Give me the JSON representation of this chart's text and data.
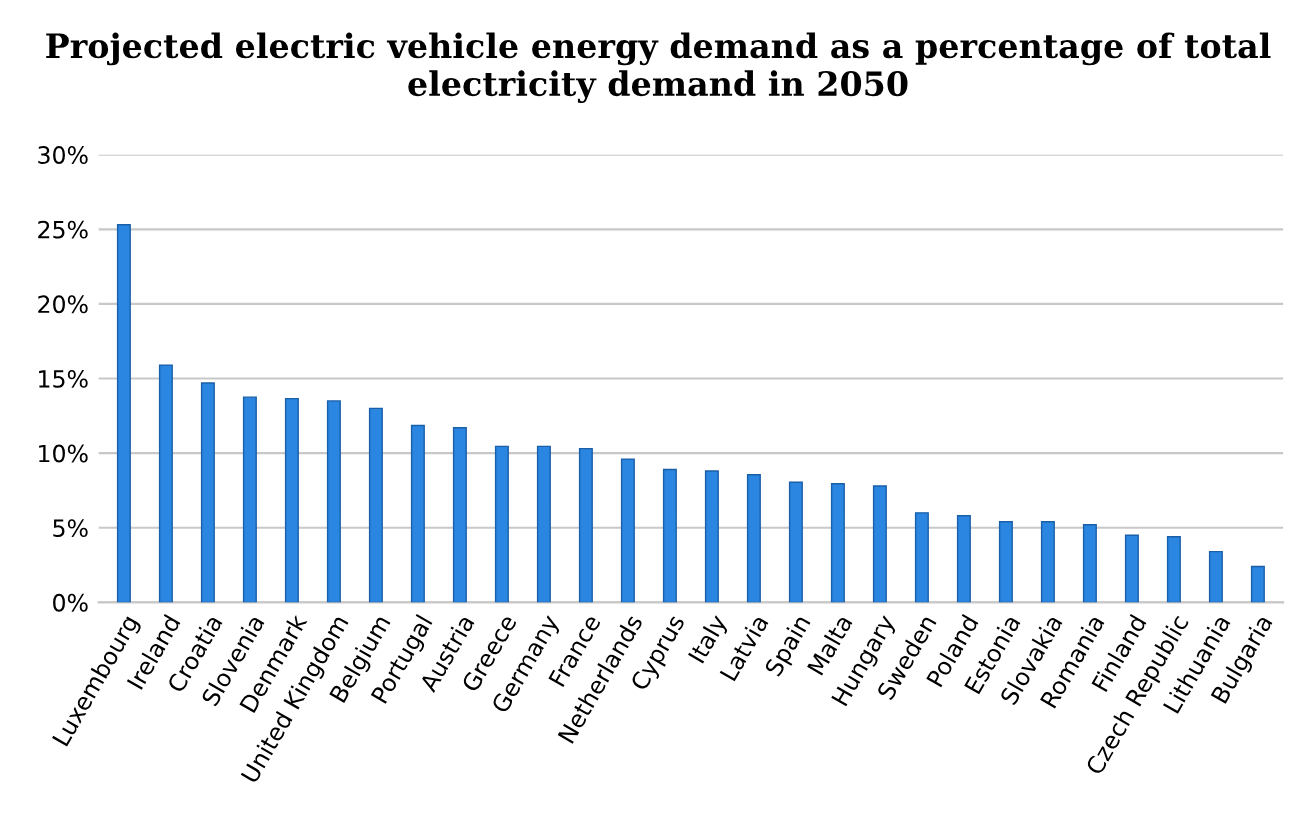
{
  "chart_data": {
    "type": "bar",
    "title": "Projected electric vehicle energy demand as a percentage of total\nelectricity demand in 2050",
    "categories": [
      "Luxembourg",
      "Ireland",
      "Croatia",
      "Slovenia",
      "Denmark",
      "United Kingdom",
      "Belgium",
      "Portugal",
      "Austria",
      "Greece",
      "Germany",
      "France",
      "Netherlands",
      "Cyprus",
      "Italy",
      "Latvia",
      "Spain",
      "Malta",
      "Hungary",
      "Sweden",
      "Poland",
      "Estonia",
      "Slovakia",
      "Romania",
      "Finland",
      "Czech Republic",
      "Lithuania",
      "Bulgaria"
    ],
    "values": [
      25.3,
      15.9,
      14.7,
      13.75,
      13.65,
      13.5,
      13.0,
      11.85,
      11.7,
      10.45,
      10.45,
      10.3,
      9.6,
      8.9,
      8.8,
      8.55,
      8.05,
      7.95,
      7.8,
      6.0,
      5.8,
      5.4,
      5.4,
      5.2,
      4.5,
      4.4,
      3.4,
      2.4
    ],
    "color": "#2a86e0",
    "ylim": [
      0,
      30
    ],
    "yticks": [
      {
        "value": 0,
        "label": "0%"
      },
      {
        "value": 5,
        "label": "5%"
      },
      {
        "value": 10,
        "label": "10%"
      },
      {
        "value": 15,
        "label": "15%"
      },
      {
        "value": 20,
        "label": "20%"
      },
      {
        "value": 25,
        "label": "25%"
      },
      {
        "value": 30,
        "label": "30%"
      }
    ],
    "grid": "y"
  }
}
